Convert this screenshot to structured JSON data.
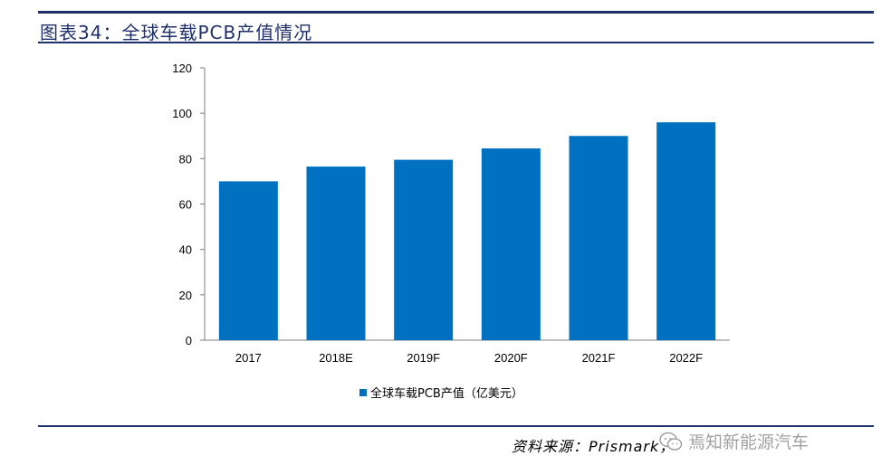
{
  "figure": {
    "title": "图表34：全球车载PCB产值情况",
    "source": "资料来源：Prismark，",
    "watermark": "焉知新能源汽车"
  },
  "colors": {
    "bar": "#0070c0",
    "rule": "#1f2f6b",
    "axis": "#7f7f7f"
  },
  "chart_data": {
    "type": "bar",
    "categories": [
      "2017",
      "2018E",
      "2019F",
      "2020F",
      "2021F",
      "2022F"
    ],
    "series": [
      {
        "name": "全球车载PCB产值（亿美元）",
        "values": [
          70,
          76.5,
          79.5,
          84.5,
          90,
          96
        ]
      }
    ],
    "title": "",
    "xlabel": "",
    "ylabel": "",
    "ylim": [
      0,
      120
    ],
    "yticks": [
      0,
      20,
      40,
      60,
      80,
      100,
      120
    ],
    "grid": false,
    "legend_position": "bottom"
  }
}
